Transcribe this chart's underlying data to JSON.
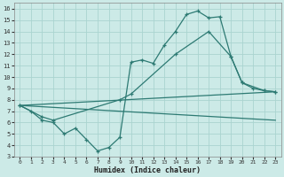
{
  "xlabel": "Humidex (Indice chaleur)",
  "background_color": "#cceae7",
  "grid_color": "#aad4d0",
  "line_color": "#2d7a73",
  "xlim": [
    -0.5,
    23.5
  ],
  "ylim": [
    3,
    16.5
  ],
  "xticks": [
    0,
    1,
    2,
    3,
    4,
    5,
    6,
    7,
    8,
    9,
    10,
    11,
    12,
    13,
    14,
    15,
    16,
    17,
    18,
    19,
    20,
    21,
    22,
    23
  ],
  "yticks": [
    3,
    4,
    5,
    6,
    7,
    8,
    9,
    10,
    11,
    12,
    13,
    14,
    15,
    16
  ],
  "series": [
    {
      "x": [
        0,
        1,
        2,
        3,
        4,
        5,
        6,
        7,
        8,
        9,
        10,
        11,
        12,
        13,
        14,
        15,
        16,
        17,
        18,
        19,
        20,
        21,
        22,
        23
      ],
      "y": [
        7.5,
        7.0,
        6.2,
        6.0,
        5.0,
        5.5,
        4.5,
        3.5,
        3.8,
        4.7,
        11.3,
        11.5,
        11.2,
        12.8,
        14.0,
        15.5,
        15.8,
        15.2,
        15.3,
        11.8,
        9.5,
        9.0,
        8.8,
        8.7
      ],
      "marker": true
    },
    {
      "x": [
        0,
        2,
        3,
        9,
        10,
        14,
        17,
        19,
        20,
        22,
        23
      ],
      "y": [
        7.5,
        6.5,
        6.2,
        8.0,
        8.5,
        12.0,
        14.0,
        11.8,
        9.5,
        8.8,
        8.7
      ],
      "marker": true
    },
    {
      "x": [
        0,
        23
      ],
      "y": [
        7.5,
        8.7
      ],
      "marker": false
    },
    {
      "x": [
        0,
        23
      ],
      "y": [
        7.5,
        6.2
      ],
      "marker": false
    }
  ]
}
